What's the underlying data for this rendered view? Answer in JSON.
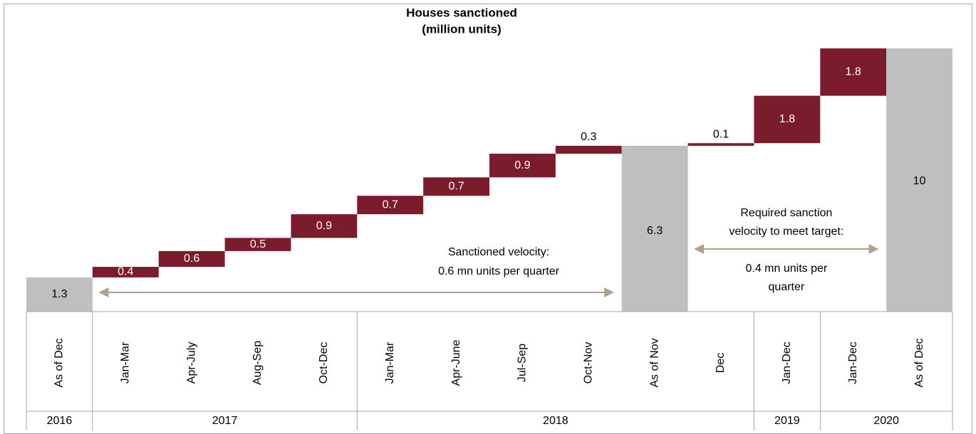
{
  "chart_data": {
    "type": "waterfall",
    "title": "Houses sanctioned",
    "subtitle": "(million units)",
    "categories": [
      "As of Dec",
      "Jan-Mar",
      "Apr-July",
      "Aug-Sep",
      "Oct-Dec",
      "Jan-Mar",
      "Apr-June",
      "Jul-Sep",
      "Oct-Nov",
      "As of Nov",
      "Dec",
      "Jan-Dec",
      "Jan-Dec",
      "As of Dec"
    ],
    "values": [
      1.3,
      0.4,
      0.6,
      0.5,
      0.9,
      0.7,
      0.7,
      0.9,
      0.3,
      6.3,
      0.1,
      1.8,
      1.8,
      10.0
    ],
    "measure": [
      "absolute",
      "relative",
      "relative",
      "relative",
      "relative",
      "relative",
      "relative",
      "relative",
      "relative",
      "absolute",
      "relative",
      "relative",
      "relative",
      "absolute"
    ],
    "color": "#7b1c2c",
    "total_color": "#bfbfbf",
    "groups": [
      {
        "label": "2016",
        "start": 0,
        "end": 0
      },
      {
        "label": "2017",
        "start": 1,
        "end": 4
      },
      {
        "label": "2018",
        "start": 5,
        "end": 10
      },
      {
        "label": "2019",
        "start": 11,
        "end": 11
      },
      {
        "label": "2020",
        "start": 12,
        "end": 13
      }
    ],
    "annotations": [
      {
        "lines": [
          "Sanctioned velocity:",
          "0.6 mn units per quarter"
        ],
        "from": 1,
        "to": 8
      },
      {
        "lines": [
          "Required sanction",
          "velocity to meet target:",
          "0.4 mn units per",
          "quarter"
        ],
        "from": 10,
        "to": 12
      }
    ],
    "ylim": [
      0,
      10
    ]
  }
}
